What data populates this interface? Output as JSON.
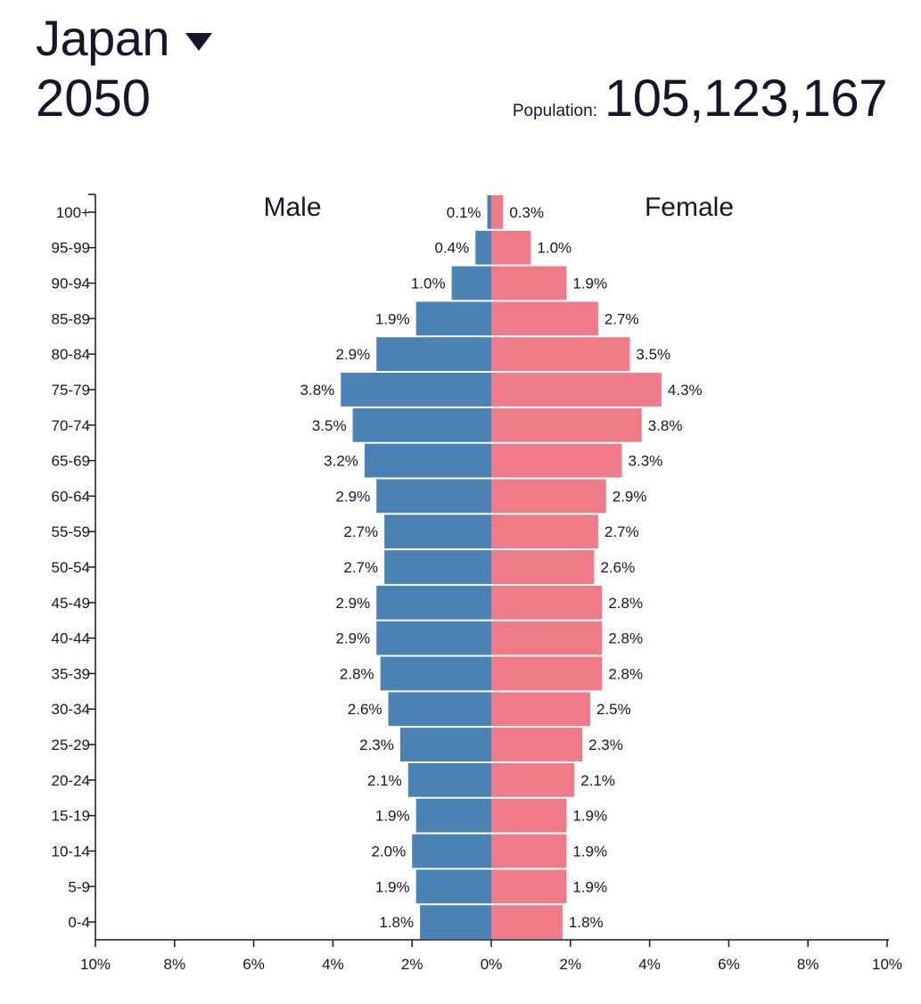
{
  "header": {
    "country": "Japan",
    "dropdown_icon": "caret-down-icon",
    "year": "2050",
    "population_label": "Population:",
    "population_value": "105,123,167"
  },
  "colors": {
    "male": "#4a82b6",
    "female": "#ef7b89",
    "axis": "#16162b"
  },
  "chart_data": {
    "type": "bar",
    "orientation": "horizontal-pyramid",
    "categories": [
      "100+",
      "95-99",
      "90-94",
      "85-89",
      "80-84",
      "75-79",
      "70-74",
      "65-69",
      "60-64",
      "55-59",
      "50-54",
      "45-49",
      "40-44",
      "35-39",
      "30-34",
      "25-29",
      "20-24",
      "15-19",
      "10-14",
      "5-9",
      "0-4"
    ],
    "series": [
      {
        "name": "Male",
        "values": [
          0.1,
          0.4,
          1.0,
          1.9,
          2.9,
          3.8,
          3.5,
          3.2,
          2.9,
          2.7,
          2.7,
          2.9,
          2.9,
          2.8,
          2.6,
          2.3,
          2.1,
          1.9,
          2.0,
          1.9,
          1.8
        ],
        "labels": [
          "0.1%",
          "0.4%",
          "1.0%",
          "1.9%",
          "2.9%",
          "3.8%",
          "3.5%",
          "3.2%",
          "2.9%",
          "2.7%",
          "2.7%",
          "2.9%",
          "2.9%",
          "2.8%",
          "2.6%",
          "2.3%",
          "2.1%",
          "1.9%",
          "2.0%",
          "1.9%",
          "1.8%"
        ]
      },
      {
        "name": "Female",
        "values": [
          0.3,
          1.0,
          1.9,
          2.7,
          3.5,
          4.3,
          3.8,
          3.3,
          2.9,
          2.7,
          2.6,
          2.8,
          2.8,
          2.8,
          2.5,
          2.3,
          2.1,
          1.9,
          1.9,
          1.9,
          1.8
        ],
        "labels": [
          "0.3%",
          "1.0%",
          "1.9%",
          "2.7%",
          "3.5%",
          "4.3%",
          "3.8%",
          "3.3%",
          "2.9%",
          "2.7%",
          "2.6%",
          "2.8%",
          "2.8%",
          "2.8%",
          "2.5%",
          "2.3%",
          "2.1%",
          "1.9%",
          "1.9%",
          "1.9%",
          "1.8%"
        ]
      }
    ],
    "xlim": [
      -10,
      10
    ],
    "x_ticks": [
      -10,
      -8,
      -6,
      -4,
      -2,
      0,
      2,
      4,
      6,
      8,
      10
    ],
    "x_tick_labels": [
      "10%",
      "8%",
      "6%",
      "4%",
      "2%",
      "0%",
      "2%",
      "4%",
      "6%",
      "8%",
      "10%"
    ],
    "grid": false
  }
}
